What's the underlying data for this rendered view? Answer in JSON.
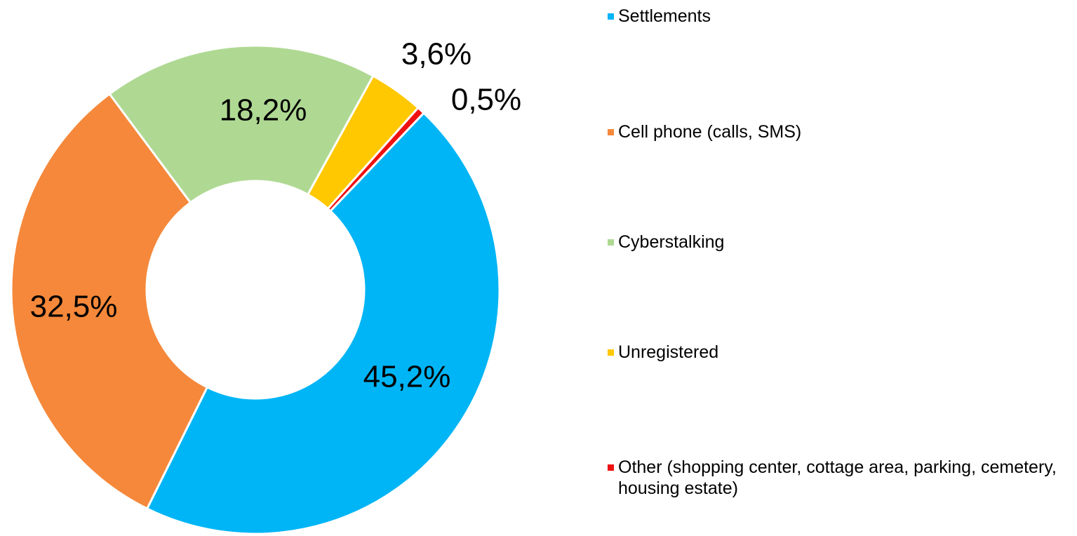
{
  "chart_data": {
    "type": "donut",
    "categories": [
      "Settlements",
      "Cell phone (calls, SMS)",
      "Cyberstalking",
      "Unregistered",
      "Other (shopping center, cottage area, parking, cemetery, housing estate)"
    ],
    "values": [
      45.2,
      32.5,
      18.2,
      3.6,
      0.5
    ],
    "value_labels": [
      "45,2%",
      "32,5%",
      "18,2%",
      "3,6%",
      "0,5%"
    ],
    "colors": [
      "#00b5f5",
      "#f5883a",
      "#afd993",
      "#ffc800",
      "#ee1111"
    ],
    "legend": "right"
  }
}
